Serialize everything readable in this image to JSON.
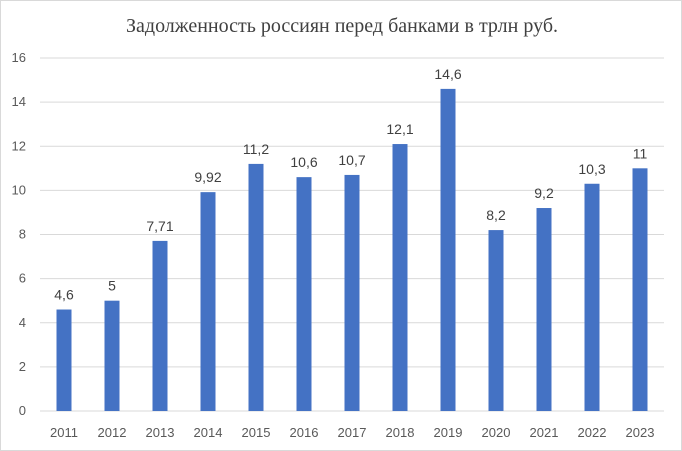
{
  "chart_data": {
    "type": "bar",
    "title": "Задолженность россиян перед банками в трлн руб.",
    "xlabel": "",
    "ylabel": "",
    "categories": [
      "2011",
      "2012",
      "2013",
      "2014",
      "2015",
      "2016",
      "2017",
      "2018",
      "2019",
      "2020",
      "2021",
      "2022",
      "2023"
    ],
    "values": [
      4.6,
      5,
      7.71,
      9.92,
      11.2,
      10.6,
      10.7,
      12.1,
      14.6,
      8.2,
      9.2,
      10.3,
      11
    ],
    "data_labels": [
      "4,6",
      "5",
      "7,71",
      "9,92",
      "11,2",
      "10,6",
      "10,7",
      "12,1",
      "14,6",
      "8,2",
      "9,2",
      "10,3",
      "11"
    ],
    "ylim": [
      0,
      16
    ],
    "yticks": [
      0,
      2,
      4,
      6,
      8,
      10,
      12,
      14,
      16
    ],
    "grid": true,
    "legend": "none",
    "bar_color": "#4472c4"
  }
}
